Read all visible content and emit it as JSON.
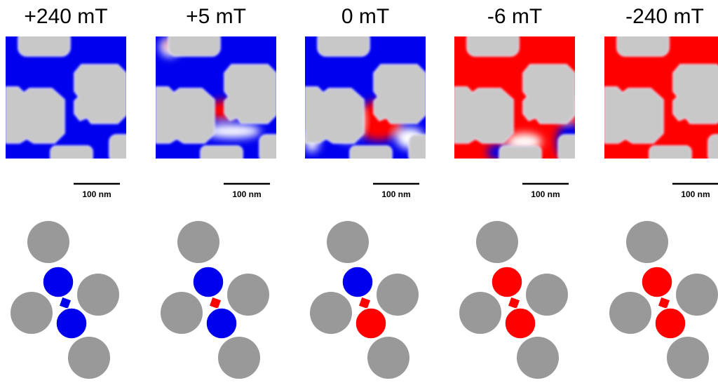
{
  "panels": [
    {
      "title": "+240 mT",
      "scale": "100 nm"
    },
    {
      "title": "+5 mT",
      "scale": "100 nm"
    },
    {
      "title": "0 mT",
      "scale": "100 nm"
    },
    {
      "title": "-6 mT",
      "scale": "100 nm"
    },
    {
      "title": "-240 mT",
      "scale": "100 nm"
    }
  ]
}
